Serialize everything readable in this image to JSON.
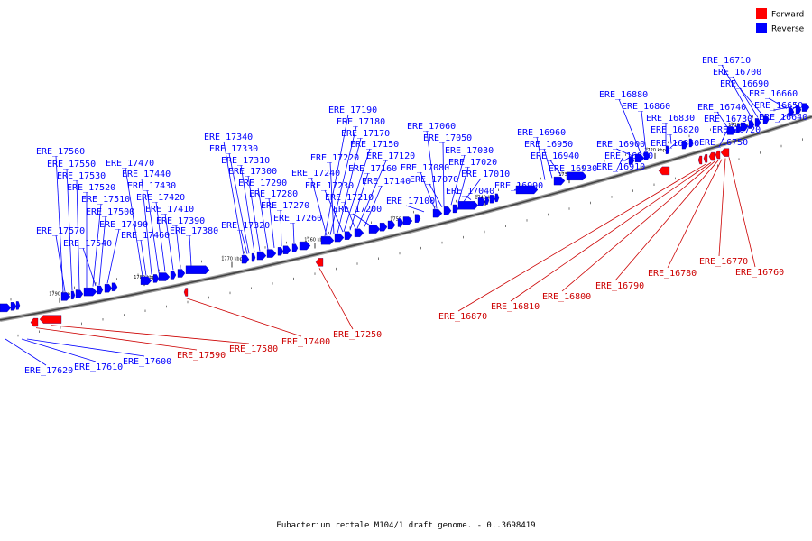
{
  "legend": {
    "items": [
      {
        "label": "Forward",
        "color": "#ff0000"
      },
      {
        "label": "Reverse",
        "color": "#0000ff"
      }
    ]
  },
  "caption": "Eubacterium rectale M104/1 draft genome. - 0..3698419",
  "ticks": [
    "1790 kbp",
    "1780 kbp",
    "1770 kbp",
    "1760 kbp",
    "1750 kbp",
    "1740 kbp",
    "1730 kbp",
    "1720 kbp",
    "1710 kbp"
  ],
  "reverse_labels": [
    "ERE_17560",
    "ERE_17550",
    "ERE_17530",
    "ERE_17520",
    "ERE_17510",
    "ERE_17500",
    "ERE_17490",
    "ERE_17570",
    "ERE_17540",
    "ERE_17470",
    "ERE_17440",
    "ERE_17430",
    "ERE_17420",
    "ERE_17410",
    "ERE_17390",
    "ERE_17460",
    "ERE_17380",
    "ERE_17340",
    "ERE_17330",
    "ERE_17310",
    "ERE_17300",
    "ERE_17290",
    "ERE_17280",
    "ERE_17270",
    "ERE_17320",
    "ERE_17260",
    "ERE_17190",
    "ERE_17180",
    "ERE_17170",
    "ERE_17150",
    "ERE_17120",
    "ERE_17220",
    "ERE_17240",
    "ERE_17160",
    "ERE_17230",
    "ERE_17140",
    "ERE_17210",
    "ERE_17200",
    "ERE_17060",
    "ERE_17050",
    "ERE_17030",
    "ERE_17080",
    "ERE_17020",
    "ERE_17070",
    "ERE_17010",
    "ERE_17040",
    "ERE_17100",
    "ERE_16960",
    "ERE_16950",
    "ERE_16940",
    "ERE_16930",
    "ERE_16990",
    "ERE_16880",
    "ERE_16860",
    "ERE_16830",
    "ERE_16820",
    "ERE_16900",
    "ERE_16840",
    "ERE_16890",
    "ERE_16910",
    "ERE_16710",
    "ERE_16700",
    "ERE_16690",
    "ERE_16660",
    "ERE_16740",
    "ERE_16650",
    "ERE_16730",
    "ERE_16640",
    "ERE_16720",
    "ERE_16750",
    "ERE_17620",
    "ERE_17610",
    "ERE_17600"
  ],
  "forward_labels": [
    "ERE_17590",
    "ERE_17580",
    "ERE_17400",
    "ERE_17250",
    "ERE_16870",
    "ERE_16810",
    "ERE_16800",
    "ERE_16790",
    "ERE_16780",
    "ERE_16770",
    "ERE_16760"
  ]
}
